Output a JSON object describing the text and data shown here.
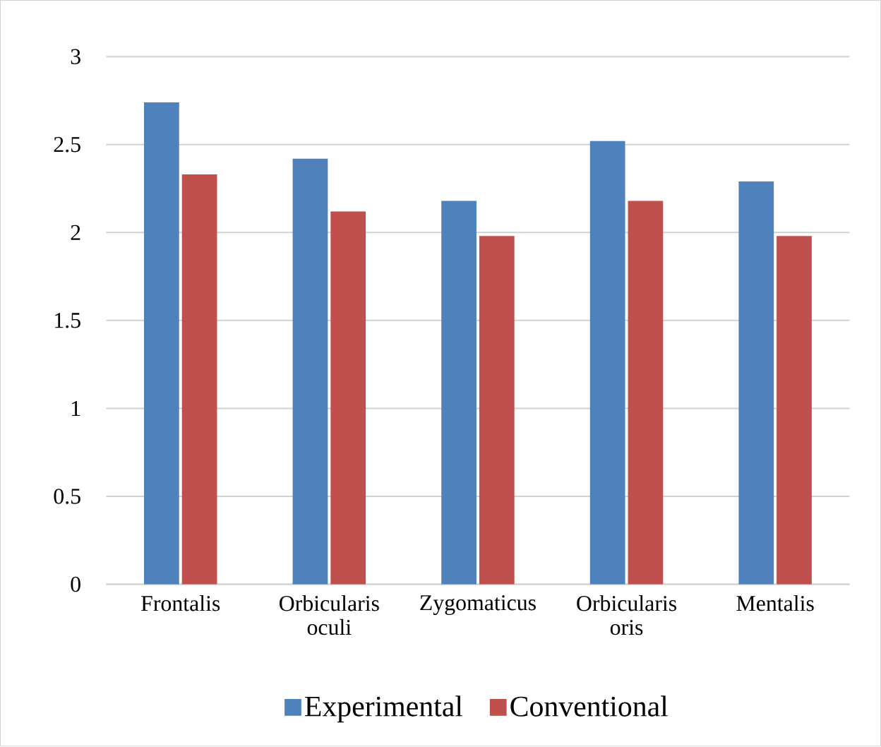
{
  "chart_data": {
    "type": "bar",
    "categories": [
      "Frontalis",
      "Orbicularis oculi",
      "Zygomaticus",
      "Orbicularis oris",
      "Mentalis"
    ],
    "series": [
      {
        "name": "Experimental",
        "color": "#4f81bd",
        "values": [
          2.74,
          2.42,
          2.18,
          2.52,
          2.29
        ]
      },
      {
        "name": "Conventional",
        "color": "#c0504d",
        "values": [
          2.33,
          2.12,
          1.98,
          2.18,
          1.98
        ]
      }
    ],
    "ylim": [
      0,
      3
    ],
    "yticks": [
      0,
      0.5,
      1,
      1.5,
      2,
      2.5,
      3
    ],
    "grid": "y",
    "legend": "bottom"
  }
}
